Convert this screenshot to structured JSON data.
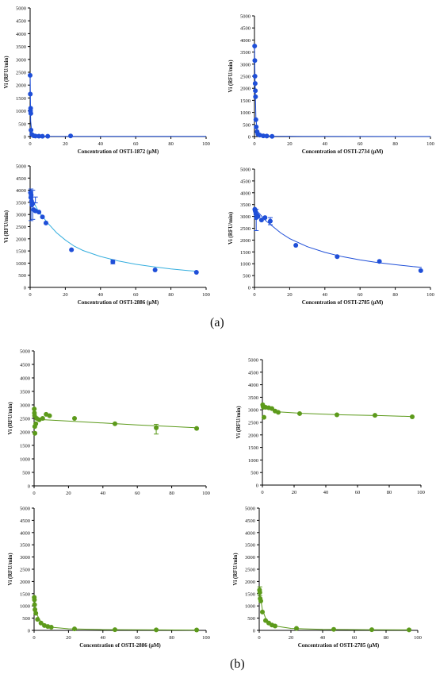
{
  "panel_labels": {
    "a": "(a)",
    "b": "(b)"
  },
  "chart_data": [
    {
      "type": "scatter",
      "panel": "a",
      "color": "#1f4fd8",
      "fit_color": "#1f4fd8",
      "xlabel": "Concentration of OSTI-1872 (μM)",
      "ylabel": "Vi (RFU/min)",
      "xlim": [
        0,
        100
      ],
      "ylim": [
        0,
        5000
      ],
      "xticks": [
        0,
        20,
        40,
        60,
        80,
        100
      ],
      "yticks": [
        0,
        500,
        1000,
        1500,
        2000,
        2500,
        3000,
        3500,
        4000,
        4500,
        5000
      ],
      "points": [
        [
          0,
          2380
        ],
        [
          0.1,
          1650
        ],
        [
          0.2,
          1000
        ],
        [
          0.3,
          1100
        ],
        [
          0.4,
          900
        ],
        [
          0.5,
          250
        ],
        [
          1,
          80
        ],
        [
          2,
          30
        ],
        [
          3,
          20
        ],
        [
          5,
          15
        ],
        [
          7,
          10
        ],
        [
          10,
          10
        ],
        [
          23,
          25
        ]
      ],
      "fit": [
        [
          0.05,
          2300
        ],
        [
          0.3,
          600
        ],
        [
          1,
          150
        ],
        [
          3,
          40
        ],
        [
          10,
          12
        ],
        [
          30,
          8
        ],
        [
          100,
          5
        ]
      ]
    },
    {
      "type": "scatter",
      "panel": "a",
      "color": "#1f4fd8",
      "fit_color": "#1f4fd8",
      "xlabel": "Concentration of OSTI-2734 (μM)",
      "ylabel": "Vi (RFU/min)",
      "xlim": [
        0,
        100
      ],
      "ylim": [
        0,
        5000
      ],
      "xticks": [
        0,
        20,
        40,
        60,
        80,
        100
      ],
      "yticks": [
        0,
        500,
        1000,
        1500,
        2000,
        2500,
        3000,
        3500,
        4000,
        4500,
        5000
      ],
      "points": [
        [
          0.1,
          3750
        ],
        [
          0.2,
          3150
        ],
        [
          0.3,
          2500
        ],
        [
          0.4,
          2200
        ],
        [
          0.5,
          1900
        ],
        [
          0.6,
          1650
        ],
        [
          0.8,
          700
        ],
        [
          1,
          400
        ],
        [
          1.5,
          200
        ],
        [
          2,
          100
        ],
        [
          3,
          60
        ],
        [
          5,
          30
        ],
        [
          7,
          20
        ],
        [
          10,
          10
        ]
      ],
      "fit": [
        [
          0.05,
          3800
        ],
        [
          0.3,
          2400
        ],
        [
          0.8,
          800
        ],
        [
          1.5,
          250
        ],
        [
          3,
          60
        ],
        [
          10,
          15
        ],
        [
          30,
          5
        ],
        [
          100,
          2
        ]
      ]
    },
    {
      "type": "scatter",
      "panel": "a",
      "color": "#1f4fd8",
      "fit_color": "#35aede",
      "xlabel": "Concentration of OSTI-2886 (μM)",
      "ylabel": "Vi (RFU/min)",
      "xlim": [
        0,
        100
      ],
      "ylim": [
        0,
        5000
      ],
      "xticks": [
        0,
        20,
        40,
        60,
        80,
        100
      ],
      "yticks": [
        0,
        500,
        1000,
        1500,
        2000,
        2500,
        3000,
        3500,
        4000,
        4500,
        5000
      ],
      "points": [
        [
          0.2,
          3900
        ],
        [
          0.4,
          3700
        ],
        [
          0.6,
          3800
        ],
        [
          0.8,
          3550
        ],
        [
          1,
          3400
        ],
        [
          1.5,
          3450
        ],
        [
          2,
          3200
        ],
        [
          3,
          3150
        ],
        [
          5,
          3100
        ],
        [
          7,
          2900
        ],
        [
          9,
          2650
        ],
        [
          23.5,
          1550
        ],
        [
          47,
          1050
        ],
        [
          71,
          720
        ],
        [
          94.5,
          620
        ]
      ],
      "error_bars": [
        [
          0.5,
          3400,
          650
        ],
        [
          1.5,
          3400,
          600
        ],
        [
          3,
          3600,
          120
        ],
        [
          47,
          1050,
          80
        ]
      ],
      "fit": [
        [
          0,
          3900
        ],
        [
          2,
          3500
        ],
        [
          5,
          3100
        ],
        [
          10,
          2650
        ],
        [
          15,
          2250
        ],
        [
          20,
          1950
        ],
        [
          25,
          1700
        ],
        [
          30,
          1520
        ],
        [
          40,
          1270
        ],
        [
          50,
          1090
        ],
        [
          60,
          950
        ],
        [
          70,
          850
        ],
        [
          80,
          760
        ],
        [
          90,
          690
        ],
        [
          95,
          660
        ]
      ]
    },
    {
      "type": "scatter",
      "panel": "a",
      "color": "#1f4fd8",
      "fit_color": "#1f4fd8",
      "xlabel": "Concentration of OSTI-2785 (μM)",
      "ylabel": "Vi (RFU/min)",
      "xlim": [
        0,
        100
      ],
      "ylim": [
        0,
        5000
      ],
      "xticks": [
        0,
        20,
        40,
        60,
        80,
        100
      ],
      "yticks": [
        0,
        500,
        1000,
        1500,
        2000,
        2500,
        3000,
        3500,
        4000,
        4500,
        5000
      ],
      "points": [
        [
          0.2,
          3300
        ],
        [
          0.4,
          3250
        ],
        [
          0.6,
          3200
        ],
        [
          0.8,
          3100
        ],
        [
          1,
          2950
        ],
        [
          1.5,
          3050
        ],
        [
          2,
          3000
        ],
        [
          4,
          2850
        ],
        [
          6,
          2950
        ],
        [
          9,
          2800
        ],
        [
          23.5,
          1780
        ],
        [
          47,
          1300
        ],
        [
          71,
          1100
        ],
        [
          94.5,
          710
        ]
      ],
      "error_bars": [
        [
          1,
          2850,
          450
        ],
        [
          9,
          2800,
          150
        ]
      ],
      "fit": [
        [
          0,
          3350
        ],
        [
          3,
          3100
        ],
        [
          6,
          2850
        ],
        [
          10,
          2600
        ],
        [
          15,
          2300
        ],
        [
          20,
          2060
        ],
        [
          30,
          1720
        ],
        [
          40,
          1480
        ],
        [
          50,
          1300
        ],
        [
          60,
          1160
        ],
        [
          70,
          1050
        ],
        [
          80,
          960
        ],
        [
          90,
          880
        ],
        [
          95,
          850
        ]
      ]
    },
    {
      "type": "scatter",
      "panel": "b",
      "color": "#5c9a1b",
      "fit_color": "#5c9a1b",
      "xlabel": "Concentration of OSTI-1872 (μM)",
      "ylabel": "Vi (RFU/min)",
      "xlim": [
        0,
        100
      ],
      "ylim": [
        0,
        5000
      ],
      "xticks": [
        0,
        20,
        40,
        60,
        80,
        100
      ],
      "yticks": [
        0,
        500,
        1000,
        1500,
        2000,
        2500,
        3000,
        3500,
        4000,
        4500,
        5000
      ],
      "points": [
        [
          0.1,
          2850
        ],
        [
          0.2,
          2700
        ],
        [
          0.3,
          2600
        ],
        [
          0.4,
          2200
        ],
        [
          0.5,
          1950
        ],
        [
          1,
          2300
        ],
        [
          1.5,
          2500
        ],
        [
          3,
          2450
        ],
        [
          5,
          2500
        ],
        [
          7,
          2650
        ],
        [
          9,
          2600
        ],
        [
          23.5,
          2500
        ],
        [
          47,
          2300
        ],
        [
          71,
          2150
        ],
        [
          94.5,
          2130
        ]
      ],
      "error_bars": [
        [
          71,
          2100,
          180
        ]
      ],
      "fit": [
        [
          0,
          2470
        ],
        [
          20,
          2400
        ],
        [
          40,
          2330
        ],
        [
          60,
          2260
        ],
        [
          80,
          2200
        ],
        [
          95,
          2150
        ]
      ]
    },
    {
      "type": "scatter",
      "panel": "b",
      "color": "#5c9a1b",
      "fit_color": "#5c9a1b",
      "xlabel": "Concentration of OSTI-2734 (μM)",
      "ylabel": "Vi (RFU/min)",
      "xlim": [
        0,
        100
      ],
      "ylim": [
        0,
        5000
      ],
      "xticks": [
        0,
        20,
        40,
        60,
        80,
        100
      ],
      "yticks": [
        0,
        500,
        1000,
        1500,
        2000,
        2500,
        3000,
        3500,
        4000,
        4500,
        5000
      ],
      "points": [
        [
          0.2,
          3200
        ],
        [
          0.4,
          3150
        ],
        [
          0.6,
          3100
        ],
        [
          1,
          2700
        ],
        [
          2,
          3100
        ],
        [
          4,
          3080
        ],
        [
          6,
          3050
        ],
        [
          8,
          2950
        ],
        [
          10,
          2900
        ],
        [
          23.5,
          2850
        ],
        [
          47,
          2800
        ],
        [
          71,
          2780
        ],
        [
          94.5,
          2720
        ]
      ],
      "fit": [
        [
          0,
          3180
        ],
        [
          3,
          3080
        ],
        [
          6,
          2980
        ],
        [
          10,
          2920
        ],
        [
          25,
          2860
        ],
        [
          50,
          2800
        ],
        [
          75,
          2770
        ],
        [
          95,
          2730
        ]
      ]
    },
    {
      "type": "scatter",
      "panel": "b",
      "color": "#5c9a1b",
      "fit_color": "#5c9a1b",
      "xlabel": "Concentration of OSTI-2886 (μM)",
      "ylabel": "Vi (RFU/min)",
      "xlim": [
        0,
        100
      ],
      "ylim": [
        0,
        5000
      ],
      "xticks": [
        0,
        20,
        40,
        60,
        80,
        100
      ],
      "yticks": [
        0,
        500,
        1000,
        1500,
        2000,
        2500,
        3000,
        3500,
        4000,
        4500,
        5000
      ],
      "points": [
        [
          0.1,
          1350
        ],
        [
          0.2,
          1250
        ],
        [
          0.3,
          1050
        ],
        [
          0.5,
          850
        ],
        [
          1,
          700
        ],
        [
          2,
          450
        ],
        [
          4,
          300
        ],
        [
          6,
          200
        ],
        [
          8,
          160
        ],
        [
          10,
          130
        ],
        [
          23.5,
          60
        ],
        [
          47,
          30
        ],
        [
          71,
          20
        ],
        [
          94.5,
          15
        ]
      ],
      "fit": [
        [
          0,
          1420
        ],
        [
          1,
          850
        ],
        [
          2,
          600
        ],
        [
          4,
          350
        ],
        [
          7,
          200
        ],
        [
          10,
          130
        ],
        [
          20,
          65
        ],
        [
          40,
          30
        ],
        [
          70,
          18
        ],
        [
          95,
          12
        ]
      ]
    },
    {
      "type": "scatter",
      "panel": "b",
      "color": "#5c9a1b",
      "fit_color": "#5c9a1b",
      "xlabel": "Concentration of OSTI-2785 (μM)",
      "ylabel": "Vi (RFU/min)",
      "xlim": [
        0,
        100
      ],
      "ylim": [
        0,
        5000
      ],
      "xticks": [
        0,
        20,
        40,
        60,
        80,
        100
      ],
      "yticks": [
        0,
        500,
        1000,
        1500,
        2000,
        2500,
        3000,
        3500,
        4000,
        4500,
        5000
      ],
      "points": [
        [
          0.2,
          1650
        ],
        [
          0.4,
          1550
        ],
        [
          0.6,
          1300
        ],
        [
          1,
          1200
        ],
        [
          2,
          750
        ],
        [
          4,
          400
        ],
        [
          6,
          300
        ],
        [
          8,
          220
        ],
        [
          10,
          180
        ],
        [
          23.5,
          80
        ],
        [
          47,
          40
        ],
        [
          71,
          30
        ],
        [
          94.5,
          20
        ]
      ],
      "error_bars": [
        [
          0.4,
          1600,
          180
        ]
      ],
      "fit": [
        [
          0,
          1700
        ],
        [
          1,
          1250
        ],
        [
          2,
          850
        ],
        [
          4,
          500
        ],
        [
          7,
          280
        ],
        [
          10,
          180
        ],
        [
          20,
          80
        ],
        [
          40,
          40
        ],
        [
          70,
          25
        ],
        [
          95,
          18
        ]
      ]
    }
  ]
}
